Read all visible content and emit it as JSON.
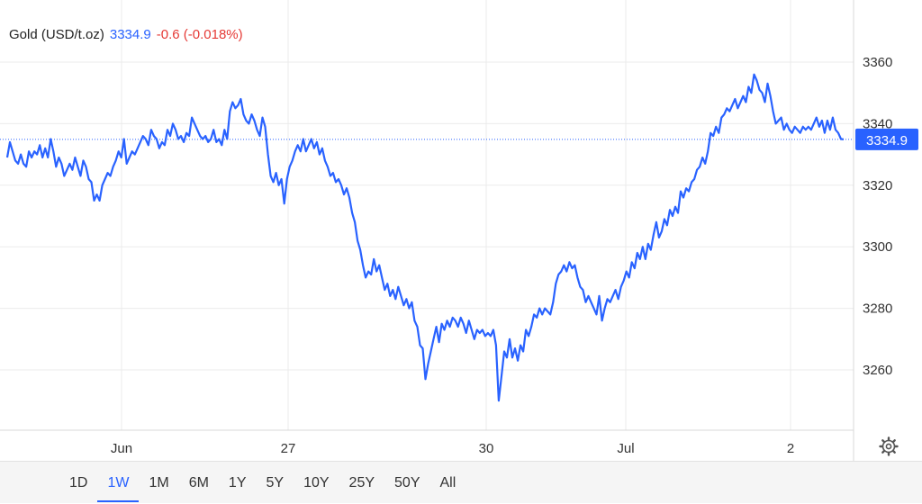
{
  "legend": {
    "name": "Gold (USD/t.oz)",
    "price": "3334.9",
    "change": "-0.6 (-0.018%)"
  },
  "colors": {
    "line": "#2962ff",
    "price_text": "#2962ff",
    "change_negative": "#e53935",
    "grid": "#e6e6e6",
    "axis_text": "#333333"
  },
  "chart_data": {
    "type": "line",
    "title": "Gold (USD/t.oz)",
    "series": [
      {
        "values": [
          3329,
          3334,
          3331,
          3328,
          3327,
          3330,
          3327,
          3326,
          3331,
          3329,
          3331,
          3330,
          3333,
          3329,
          3332,
          3329,
          3335,
          3331,
          3326,
          3329,
          3327,
          3323,
          3325,
          3327,
          3325,
          3329,
          3326,
          3323,
          3328,
          3326,
          3322,
          3321,
          3315,
          3317,
          3315,
          3320,
          3322,
          3324,
          3323,
          3326,
          3328,
          3331,
          3329,
          3335,
          3327,
          3329,
          3331,
          3330,
          3332,
          3334,
          3336,
          3335,
          3333,
          3338,
          3336,
          3335,
          3332,
          3334,
          3333,
          3338,
          3336,
          3340,
          3338,
          3335,
          3336,
          3334,
          3337,
          3336,
          3342,
          3340,
          3338,
          3336,
          3335,
          3336,
          3334,
          3335,
          3338,
          3334,
          3335,
          3333,
          3338,
          3335,
          3344,
          3347,
          3345,
          3346,
          3348,
          3343,
          3341,
          3340,
          3343,
          3341,
          3338,
          3336,
          3342,
          3339,
          3330,
          3323,
          3321,
          3324,
          3320,
          3322,
          3314,
          3322,
          3326,
          3328,
          3331,
          3333,
          3331,
          3335,
          3331,
          3333,
          3335,
          3332,
          3334,
          3330,
          3332,
          3328,
          3326,
          3323,
          3324,
          3321,
          3322,
          3320,
          3317,
          3319,
          3316,
          3311,
          3308,
          3302,
          3299,
          3294,
          3290,
          3292,
          3291,
          3296,
          3292,
          3294,
          3290,
          3286,
          3288,
          3284,
          3286,
          3283,
          3287,
          3284,
          3281,
          3283,
          3280,
          3282,
          3276,
          3274,
          3268,
          3267,
          3257,
          3262,
          3266,
          3270,
          3274,
          3269,
          3275,
          3273,
          3276,
          3274,
          3277,
          3276,
          3274,
          3277,
          3275,
          3272,
          3276,
          3273,
          3270,
          3273,
          3272,
          3273,
          3271,
          3272,
          3271,
          3273,
          3268,
          3250,
          3258,
          3266,
          3264,
          3270,
          3264,
          3267,
          3263,
          3268,
          3266,
          3273,
          3271,
          3274,
          3278,
          3277,
          3280,
          3278,
          3280,
          3279,
          3278,
          3282,
          3288,
          3291,
          3292,
          3294,
          3292,
          3295,
          3293,
          3294,
          3290,
          3287,
          3286,
          3282,
          3284,
          3282,
          3280,
          3278,
          3284,
          3276,
          3280,
          3283,
          3282,
          3284,
          3286,
          3283,
          3287,
          3289,
          3292,
          3290,
          3295,
          3293,
          3298,
          3296,
          3300,
          3296,
          3301,
          3299,
          3304,
          3308,
          3303,
          3305,
          3309,
          3307,
          3312,
          3310,
          3313,
          3311,
          3318,
          3316,
          3319,
          3318,
          3321,
          3322,
          3325,
          3326,
          3329,
          3327,
          3331,
          3337,
          3336,
          3339,
          3337,
          3342,
          3343,
          3345,
          3344,
          3346,
          3348,
          3345,
          3347,
          3349,
          3347,
          3352,
          3350,
          3356,
          3354,
          3351,
          3350,
          3347,
          3353,
          3349,
          3344,
          3340,
          3341,
          3342,
          3338,
          3340,
          3338,
          3337,
          3339,
          3338,
          3337,
          3339,
          3338,
          3339,
          3338,
          3340,
          3342,
          3339,
          3341,
          3337,
          3341,
          3338,
          3342,
          3338,
          3337,
          3335,
          3334.9
        ]
      }
    ],
    "x_ticks": [
      "Jun",
      "27",
      "30",
      "Jul",
      "2"
    ],
    "y_ticks": [
      3260,
      3280,
      3300,
      3320,
      3340,
      3360
    ],
    "ylim": [
      3240,
      3370
    ],
    "last_value_label": "3334.9",
    "grid": true,
    "legend_position": "top-left"
  },
  "time_ranges": [
    "1D",
    "1W",
    "1M",
    "6M",
    "1Y",
    "5Y",
    "10Y",
    "25Y",
    "50Y",
    "All"
  ],
  "active_range": "1W",
  "settings_icon": "gear-icon"
}
